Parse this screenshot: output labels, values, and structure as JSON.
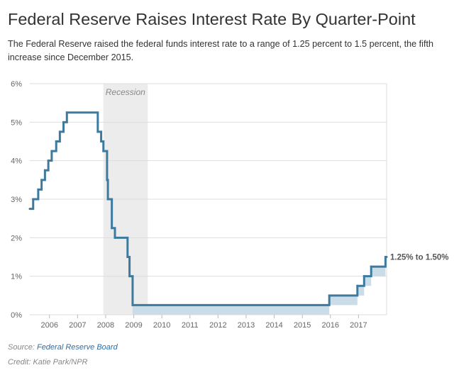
{
  "title": "Federal Reserve Raises Interest Rate By Quarter-Point",
  "subtitle": "The Federal Reserve raised the federal funds interest rate to a range of 1.25 percent to 1.5 percent, the fifth increase since December 2015.",
  "source_label": "Source: ",
  "source_link": "Federal Reserve Board",
  "credit": "Credit: Katie Park/NPR",
  "colors": {
    "line": "#3d7a9e",
    "band": "#c9dce8",
    "recession": "#ececec",
    "grid": "#dddddd",
    "text": "#333333",
    "muted": "#888888",
    "link": "#2e6da4"
  },
  "chart_data": {
    "type": "line",
    "xlim": [
      2005.3,
      2018.0
    ],
    "ylim": [
      0,
      6
    ],
    "y_ticks": [
      0,
      1,
      2,
      3,
      4,
      5,
      6
    ],
    "y_tick_labels": [
      "0%",
      "1%",
      "2%",
      "3%",
      "4%",
      "5%",
      "6%"
    ],
    "x_ticks": [
      2006,
      2007,
      2008,
      2009,
      2010,
      2011,
      2012,
      2013,
      2014,
      2015,
      2016,
      2017
    ],
    "x_tick_labels": [
      "2006",
      "2007",
      "2008",
      "2009",
      "2010",
      "2011",
      "2012",
      "2013",
      "2014",
      "2015",
      "2016",
      "2017"
    ],
    "grid": true,
    "recession": {
      "start": 2007.92,
      "end": 2009.5,
      "label": "Recession"
    },
    "annotation": "1.25% to 1.50%",
    "series": [
      {
        "values": [
          {
            "x": 2005.3,
            "y": 2.75
          },
          {
            "x": 2005.42,
            "y": 3.0
          },
          {
            "x": 2005.6,
            "y": 3.25
          },
          {
            "x": 2005.72,
            "y": 3.5
          },
          {
            "x": 2005.84,
            "y": 3.75
          },
          {
            "x": 2005.96,
            "y": 4.0
          },
          {
            "x": 2006.08,
            "y": 4.25
          },
          {
            "x": 2006.24,
            "y": 4.5
          },
          {
            "x": 2006.37,
            "y": 4.75
          },
          {
            "x": 2006.5,
            "y": 5.0
          },
          {
            "x": 2006.62,
            "y": 5.25
          },
          {
            "x": 2007.72,
            "y": 4.75
          },
          {
            "x": 2007.84,
            "y": 4.5
          },
          {
            "x": 2007.92,
            "y": 4.25
          },
          {
            "x": 2008.05,
            "y": 3.5
          },
          {
            "x": 2008.08,
            "y": 3.0
          },
          {
            "x": 2008.22,
            "y": 2.25
          },
          {
            "x": 2008.33,
            "y": 2.0
          },
          {
            "x": 2008.78,
            "y": 1.5
          },
          {
            "x": 2008.85,
            "y": 1.0
          },
          {
            "x": 2008.96,
            "y": 0.25
          },
          {
            "x": 2015.96,
            "y": 0.5
          },
          {
            "x": 2016.96,
            "y": 0.75
          },
          {
            "x": 2017.2,
            "y": 1.0
          },
          {
            "x": 2017.45,
            "y": 1.25
          },
          {
            "x": 2017.96,
            "y": 1.5
          },
          {
            "x": 2018.0,
            "y": 1.5
          }
        ]
      }
    ]
  }
}
